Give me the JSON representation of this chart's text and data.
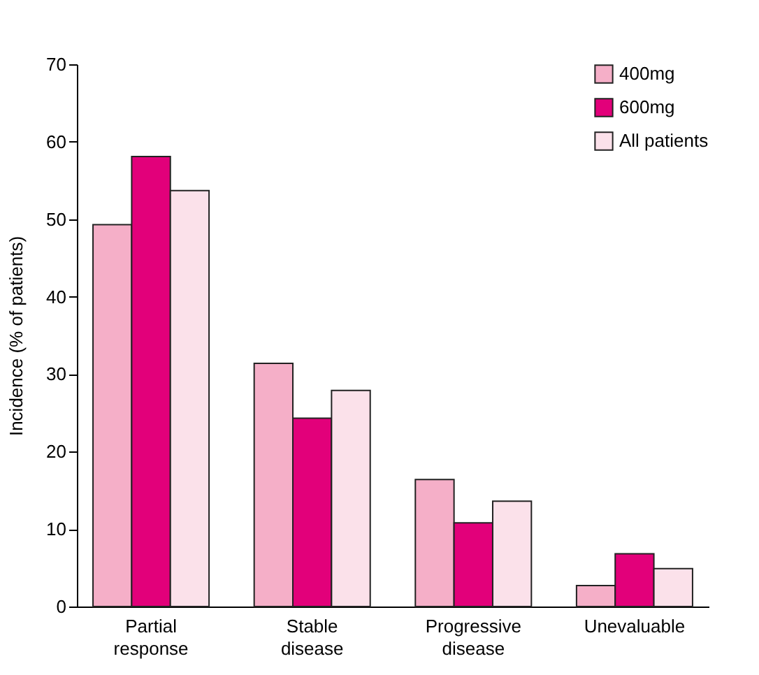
{
  "chart_data": {
    "type": "bar",
    "ylabel": "Incidence (% of patients)",
    "categories": [
      "Partial response",
      "Stable disease",
      "Progressive disease",
      "Unevaluable"
    ],
    "series": [
      {
        "name": "400mg",
        "color": "#f5afc8",
        "values": [
          49.3,
          31.4,
          16.4,
          2.7
        ]
      },
      {
        "name": "600mg",
        "color": "#e2007a",
        "values": [
          58.1,
          24.3,
          10.8,
          6.8
        ]
      },
      {
        "name": "All patients",
        "color": "#fbe1ea",
        "values": [
          53.7,
          27.9,
          13.6,
          4.9
        ]
      }
    ],
    "ylim": [
      0,
      70
    ],
    "yticks": [
      0,
      10,
      20,
      30,
      40,
      50,
      60,
      70
    ],
    "grid": false,
    "legend": "top right"
  }
}
